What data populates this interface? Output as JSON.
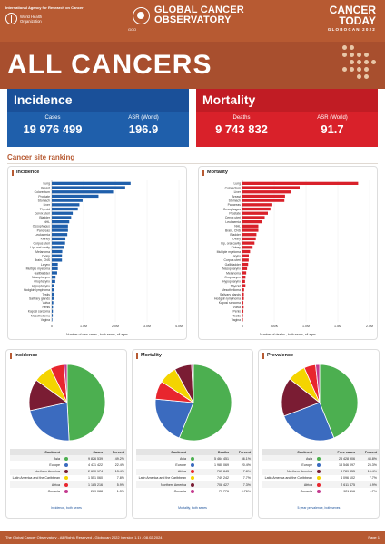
{
  "header": {
    "iarc_line": "International Agency for Research on Cancer",
    "who_line1": "World Health",
    "who_line2": "Organization",
    "gco_line1": "GLOBAL CANCER",
    "gco_line2": "OBSERVATORY",
    "gco_sub": "GCO",
    "ct_line1": "CANCER",
    "ct_line2": "TODAY",
    "ct_line3": "GLOBOCAN 2022"
  },
  "page_title": "ALL CANCERS",
  "incidence": {
    "title": "Incidence",
    "cases_label": "Cases",
    "cases_value": "19 976 499",
    "asr_label": "ASR (World)",
    "asr_value": "196.9"
  },
  "mortality": {
    "title": "Mortality",
    "deaths_label": "Deaths",
    "deaths_value": "9 743 832",
    "asr_label": "ASR (World)",
    "asr_value": "91.7"
  },
  "ranking_title": "Cancer site ranking",
  "colors": {
    "brand": "#b75a32",
    "incidence_bar": "#1f5fab",
    "mortality_bar": "#d9212a",
    "asia": "#4caf50",
    "europe": "#3b6bbf",
    "northern_america": "#7a1c33",
    "latin_america": "#f4d400",
    "africa": "#e8262e",
    "oceania": "#c43a8f"
  },
  "chart_data": [
    {
      "type": "bar",
      "title": "Incidence",
      "xlabel": "Number of new cases , both sexes, all ages",
      "xticks": [
        "0",
        "1.0M",
        "2.0M",
        "3.0M",
        "4.0M"
      ],
      "xlim": [
        0,
        4000000
      ],
      "categories": [
        "Lung",
        "Breast",
        "Colorectum",
        "Prostate",
        "Stomach",
        "Liver",
        "Thyroid",
        "Cervix uteri",
        "Bladder",
        "NHL",
        "Oesophagus",
        "Pancreas",
        "Leukaemia",
        "Kidney",
        "Corpus uteri",
        "Lip, oral cavity",
        "Melanoma",
        "Ovary",
        "Brain, CNS",
        "Larynx",
        "Multiple myeloma",
        "Gallbladder",
        "Nasopharynx",
        "Oropharynx",
        "Hypopharynx",
        "Hodgkin lymphoma",
        "Testis",
        "Salivary glands",
        "Vulva",
        "Penis",
        "Kaposi sarcoma",
        "Mesothelioma",
        "Vagina"
      ],
      "values": [
        2480000,
        2310000,
        1930000,
        1470000,
        970000,
        870000,
        820000,
        660000,
        610000,
        550000,
        510000,
        510000,
        490000,
        430000,
        420000,
        390000,
        330000,
        320000,
        320000,
        190000,
        190000,
        170000,
        120000,
        110000,
        85000,
        83000,
        73000,
        56000,
        48000,
        38000,
        35000,
        31000,
        18000
      ]
    },
    {
      "type": "bar",
      "title": "Mortality",
      "xlabel": "Number of deaths , both sexes, all ages",
      "xticks": [
        "0",
        "500K",
        "1.0M",
        "1.5M",
        "2.0M"
      ],
      "xlim": [
        0,
        2000000
      ],
      "categories": [
        "Lung",
        "Colorectum",
        "Liver",
        "Breast",
        "Stomach",
        "Pancreas",
        "Oesophagus",
        "Prostate",
        "Cervix uteri",
        "Leukaemia",
        "NHL",
        "Brain, CNS",
        "Bladder",
        "Ovary",
        "Lip, oral cavity",
        "Kidney",
        "Multiple myeloma",
        "Larynx",
        "Corpus uteri",
        "Gallbladder",
        "Nasopharynx",
        "Melanoma",
        "Oropharynx",
        "Hypopharynx",
        "Thyroid",
        "Mesothelioma",
        "Salivary glands",
        "Hodgkin lymphoma",
        "Kaposi sarcoma",
        "Vulva",
        "Penis",
        "Testis",
        "Vagina"
      ],
      "values": [
        1820000,
        900000,
        760000,
        670000,
        660000,
        470000,
        440000,
        400000,
        350000,
        310000,
        250000,
        250000,
        220000,
        210000,
        190000,
        160000,
        120000,
        100000,
        98000,
        89000,
        73000,
        59000,
        48000,
        41000,
        47000,
        26000,
        22000,
        22000,
        15000,
        19000,
        15000,
        9000,
        8000
      ]
    },
    {
      "type": "pie",
      "title": "Incidence",
      "footer": "Incidence, both sexes",
      "table_headers": [
        "Continent",
        "Cases",
        "Percent"
      ],
      "rows": [
        {
          "name": "Asia",
          "count": "9 826 539",
          "percent": "49.2%",
          "value": 49.2,
          "color": "#4caf50"
        },
        {
          "name": "Europe",
          "count": "4 471 422",
          "percent": "22.4%",
          "value": 22.4,
          "color": "#3b6bbf"
        },
        {
          "name": "Northern America",
          "count": "2 670 174",
          "percent": "13.4%",
          "value": 13.4,
          "color": "#7a1c33"
        },
        {
          "name": "Latin America and the Caribbean",
          "count": "1 551 060",
          "percent": "7.8%",
          "value": 7.8,
          "color": "#f4d400"
        },
        {
          "name": "Africa",
          "count": "1 185 216",
          "percent": "5.9%",
          "value": 5.9,
          "color": "#e8262e"
        },
        {
          "name": "Oceania",
          "count": "269 088",
          "percent": "1.3%",
          "value": 1.3,
          "color": "#c43a8f"
        }
      ]
    },
    {
      "type": "pie",
      "title": "Mortality",
      "footer": "Mortality, both sexes",
      "table_headers": [
        "Continent",
        "Deaths",
        "Percent"
      ],
      "rows": [
        {
          "name": "Asia",
          "count": "5 464 451",
          "percent": "56.1%",
          "value": 56.1,
          "color": "#4caf50"
        },
        {
          "name": "Europe",
          "count": "1 980 069",
          "percent": "20.4%",
          "value": 20.4,
          "color": "#3b6bbf"
        },
        {
          "name": "Africa",
          "count": "763 843",
          "percent": "7.8%",
          "value": 7.8,
          "color": "#e8262e"
        },
        {
          "name": "Latin America and the Caribbean",
          "count": "749 242",
          "percent": "7.7%",
          "value": 7.7,
          "color": "#f4d400"
        },
        {
          "name": "Northern America",
          "count": "708 427",
          "percent": "7.3%",
          "value": 7.3,
          "color": "#7a1c33"
        },
        {
          "name": "Oceania",
          "count": "73 776",
          "percent": "0.76%",
          "value": 0.76,
          "color": "#c43a8f"
        }
      ]
    },
    {
      "type": "pie",
      "title": "Prevalence",
      "footer": "5-year prevalence, both sexes",
      "table_headers": [
        "Continent",
        "Prev. cases",
        "Percent"
      ],
      "rows": [
        {
          "name": "Asia",
          "count": "23 428 906",
          "percent": "43.8%",
          "value": 43.8,
          "color": "#4caf50"
        },
        {
          "name": "Europe",
          "count": "13 546 097",
          "percent": "25.3%",
          "value": 25.3,
          "color": "#3b6bbf"
        },
        {
          "name": "Northern America",
          "count": "8 789 355",
          "percent": "16.4%",
          "value": 16.4,
          "color": "#7a1c33"
        },
        {
          "name": "Latin America and the Caribbean",
          "count": "4 096 102",
          "percent": "7.7%",
          "value": 7.7,
          "color": "#f4d400"
        },
        {
          "name": "Africa",
          "count": "2 611 475",
          "percent": "4.9%",
          "value": 4.9,
          "color": "#e8262e"
        },
        {
          "name": "Oceania",
          "count": "921 116",
          "percent": "1.7%",
          "value": 1.7,
          "color": "#c43a8f"
        }
      ]
    }
  ],
  "footer": {
    "left": "The Global Cancer Observatory - All Rights Reserved - Globocan 2022 (version 1.1) - 08.02.2024",
    "right": "Page 1"
  }
}
